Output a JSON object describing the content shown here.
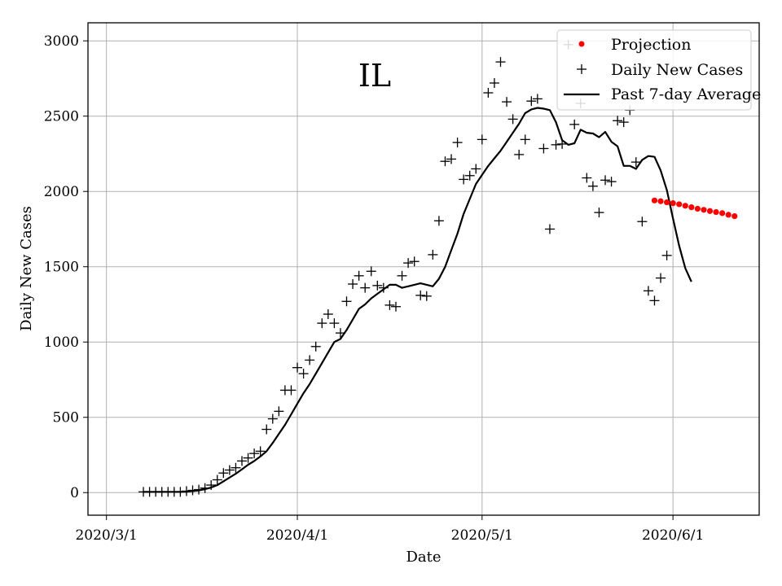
{
  "chart_data": {
    "type": "line",
    "title": "IL",
    "xlabel": "Date",
    "ylabel": "Daily New Cases",
    "xlim": [
      "2020-02-27",
      "2020-06-15"
    ],
    "ylim": [
      -150,
      3120
    ],
    "grid": true,
    "legend_position": "top-right",
    "x_ticks": [
      {
        "date": "2020-03-01",
        "label": "2020/3/1"
      },
      {
        "date": "2020-04-01",
        "label": "2020/4/1"
      },
      {
        "date": "2020-05-01",
        "label": "2020/5/1"
      },
      {
        "date": "2020-06-01",
        "label": "2020/6/1"
      }
    ],
    "y_ticks": [
      {
        "value": 0,
        "label": "0"
      },
      {
        "value": 500,
        "label": "500"
      },
      {
        "value": 1000,
        "label": "1000"
      },
      {
        "value": 1500,
        "label": "1500"
      },
      {
        "value": 2000,
        "label": "2000"
      },
      {
        "value": 2500,
        "label": "2500"
      },
      {
        "value": 3000,
        "label": "3000"
      }
    ],
    "series": [
      {
        "name": "Projection",
        "style": "dot",
        "color": "#ff0000",
        "start_date": "2020-05-29",
        "values": [
          1940,
          1935,
          1928,
          1922,
          1915,
          1905,
          1895,
          1885,
          1878,
          1870,
          1863,
          1856,
          1845,
          1836
        ]
      },
      {
        "name": "Daily New Cases",
        "style": "plus",
        "color": "#000000",
        "start_date": "2020-03-07",
        "values": [
          5,
          5,
          5,
          5,
          5,
          5,
          5,
          10,
          15,
          20,
          30,
          50,
          85,
          130,
          150,
          165,
          210,
          230,
          260,
          275,
          420,
          490,
          540,
          680,
          680,
          830,
          790,
          880,
          970,
          1125,
          1185,
          1125,
          1060,
          1270,
          1385,
          1440,
          1360,
          1470,
          1375,
          1360,
          1245,
          1235,
          1440,
          1525,
          1535,
          1310,
          1305,
          1580,
          1805,
          2200,
          2215,
          2325,
          2080,
          2105,
          2150,
          2345,
          2655,
          2720,
          2860,
          2595,
          2480,
          2245,
          2345,
          2600,
          2615,
          2285,
          1750,
          2310,
          2315,
          2975,
          2445,
          2585,
          2090,
          2035,
          1860,
          2075,
          2065,
          2470,
          2460,
          2540,
          2195,
          1800,
          1340,
          1275,
          1425,
          1575
        ]
      },
      {
        "name": "Past 7-day Average",
        "style": "line",
        "color": "#000000",
        "start_date": "2020-03-07",
        "values": [
          5,
          5,
          5,
          5,
          5,
          5,
          5,
          7,
          10,
          15,
          23,
          34,
          50,
          75,
          100,
          125,
          155,
          185,
          210,
          240,
          275,
          330,
          390,
          450,
          520,
          590,
          660,
          720,
          790,
          860,
          930,
          1000,
          1020,
          1080,
          1150,
          1220,
          1250,
          1290,
          1320,
          1350,
          1380,
          1380,
          1360,
          1370,
          1380,
          1390,
          1380,
          1370,
          1420,
          1500,
          1610,
          1720,
          1850,
          1950,
          2050,
          2110,
          2170,
          2220,
          2270,
          2330,
          2390,
          2450,
          2520,
          2545,
          2555,
          2550,
          2540,
          2460,
          2340,
          2310,
          2320,
          2410,
          2390,
          2385,
          2360,
          2395,
          2330,
          2300,
          2170,
          2170,
          2150,
          2210,
          2235,
          2230,
          2140,
          2010,
          1820,
          1640,
          1490,
          1400
        ]
      }
    ]
  }
}
